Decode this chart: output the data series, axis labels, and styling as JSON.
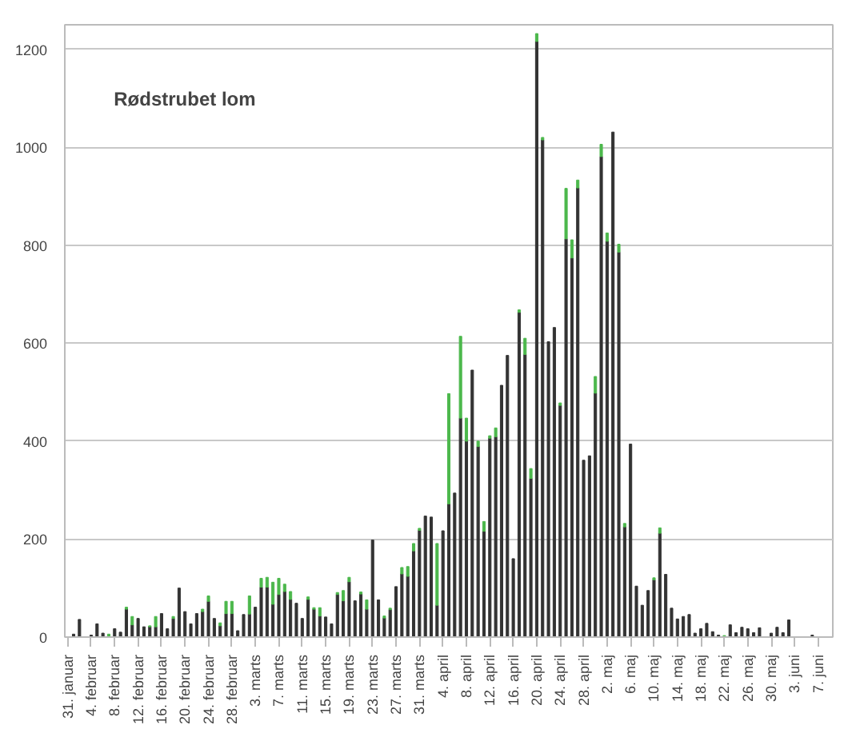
{
  "chart_data": {
    "type": "bar",
    "title": "Rødstrubet lom",
    "stacked": true,
    "grid": "y",
    "categories": [
      "31. januar",
      null,
      null,
      null,
      "4. februar",
      null,
      null,
      null,
      "8. februar",
      null,
      null,
      null,
      "12. februar",
      null,
      null,
      null,
      "16. februar",
      null,
      null,
      null,
      "20. februar",
      null,
      null,
      null,
      "24. februar",
      null,
      null,
      null,
      "28. februar",
      null,
      null,
      null,
      "3. marts",
      null,
      null,
      null,
      "7. marts",
      null,
      null,
      null,
      "11. marts",
      null,
      null,
      null,
      "15. marts",
      null,
      null,
      null,
      "19. marts",
      null,
      null,
      null,
      "23. marts",
      null,
      null,
      null,
      "27. marts",
      null,
      null,
      null,
      "31. marts",
      null,
      null,
      null,
      "4. april",
      null,
      null,
      null,
      "8. april",
      null,
      null,
      null,
      "12. april",
      null,
      null,
      null,
      "16. april",
      null,
      null,
      null,
      "20. april",
      null,
      null,
      null,
      "24. april",
      null,
      null,
      null,
      "28. april",
      null,
      null,
      null,
      "2. maj",
      null,
      null,
      null,
      "6. maj",
      null,
      null,
      null,
      "10. maj",
      null,
      null,
      null,
      "14. maj",
      null,
      null,
      null,
      "18. maj",
      null,
      null,
      null,
      "22. maj",
      null,
      null,
      null,
      "26. maj",
      null,
      null,
      null,
      "30. maj",
      null,
      null,
      null,
      "3. juni",
      null,
      null,
      null,
      "7. juni",
      null,
      null
    ],
    "series": [
      {
        "color": "#333333",
        "values": [
          0,
          6,
          36,
          0,
          4,
          27,
          8,
          0,
          17,
          10,
          57,
          25,
          38,
          21,
          21,
          21,
          48,
          17,
          38,
          100,
          52,
          27,
          48,
          52,
          73,
          38,
          23,
          48,
          48,
          13,
          46,
          47,
          61,
          102,
          102,
          67,
          87,
          93,
          77,
          69,
          38,
          77,
          57,
          43,
          41,
          27,
          87,
          74,
          113,
          74,
          88,
          57,
          198,
          76,
          39,
          56,
          103,
          129,
          124,
          176,
          218,
          247,
          245,
          65,
          217,
          272,
          294,
          447,
          400,
          545,
          389,
          216,
          406,
          409,
          514,
          575,
          160,
          663,
          577,
          324,
          1216,
          1015,
          603,
          632,
          473,
          813,
          774,
          917,
          361,
          370,
          498,
          981,
          808,
          1031,
          786,
          225,
          394,
          104,
          65,
          95,
          117,
          212,
          128,
          59,
          37,
          42,
          46,
          8,
          17,
          28,
          11,
          4,
          0,
          25,
          9,
          20,
          17,
          9,
          19,
          0,
          8,
          20,
          9,
          35,
          0,
          0,
          0,
          4,
          0,
          0,
          0
        ]
      },
      {
        "color": "#4cb84c",
        "values": [
          null,
          null,
          null,
          null,
          null,
          null,
          null,
          6,
          null,
          null,
          4,
          17,
          null,
          null,
          2,
          21,
          null,
          null,
          4,
          null,
          null,
          null,
          null,
          5,
          11,
          null,
          6,
          25,
          25,
          null,
          null,
          37,
          null,
          18,
          20,
          45,
          33,
          15,
          16,
          null,
          null,
          5,
          3,
          17,
          null,
          null,
          4,
          21,
          9,
          null,
          4,
          19,
          null,
          null,
          4,
          3,
          null,
          13,
          20,
          15,
          4,
          null,
          null,
          126,
          null,
          225,
          null,
          167,
          47,
          null,
          11,
          20,
          5,
          18,
          null,
          null,
          null,
          5,
          33,
          20,
          16,
          5,
          null,
          null,
          5,
          103,
          37,
          16,
          null,
          null,
          34,
          25,
          17,
          null,
          16,
          7,
          null,
          null,
          null,
          null,
          4,
          11,
          null,
          null,
          null,
          null,
          null,
          null,
          null,
          null,
          null,
          null,
          3,
          null,
          null,
          null,
          null,
          null,
          null,
          null,
          null,
          null,
          null,
          null,
          null,
          null,
          null,
          null,
          null,
          null,
          null
        ]
      }
    ],
    "ylim": [
      0,
      1250
    ],
    "yticks": [
      0,
      200,
      400,
      600,
      800,
      1000,
      1200
    ]
  }
}
